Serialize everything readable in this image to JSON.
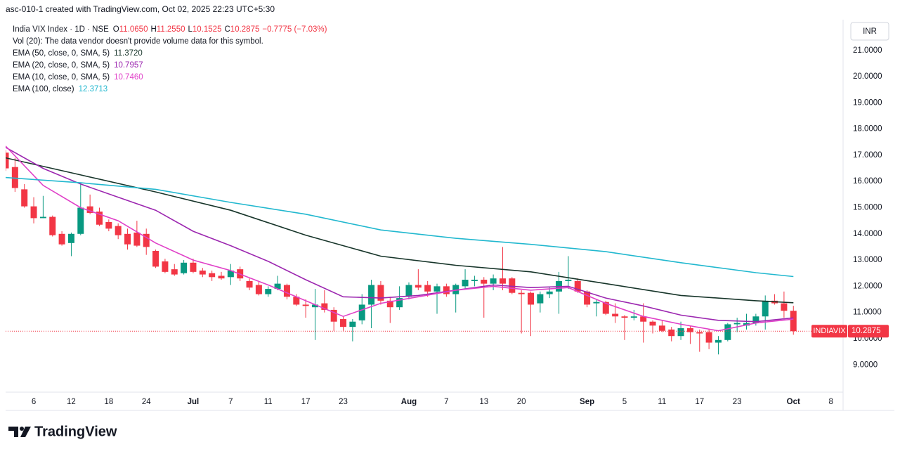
{
  "header": {
    "caption": "asc-010-1 created with TradingView.com, Oct 02, 2025 22:23 UTC+5:30",
    "brand": "TradingView"
  },
  "chart_data": {
    "type": "candlestick",
    "title": "India VIX Index · 1D · NSE",
    "quote": [
      {
        "key": "O",
        "value": "11.0650"
      },
      {
        "key": "H",
        "value": "11.2550"
      },
      {
        "key": "L",
        "value": "10.1525"
      },
      {
        "key": "C",
        "value": "10.2875"
      }
    ],
    "change": "−0.7775 (−7.03%)",
    "volume_note": "Vol (20): The data vendor doesn't provide volume data for this symbol.",
    "currency": "INR",
    "symbol": "INDIAVIX",
    "last_price": {
      "value": 10.2875,
      "label": "10.2875"
    },
    "up_color": "#089981",
    "down_color": "#f23645",
    "x": [
      0,
      1,
      2,
      3,
      4,
      5,
      6,
      7,
      8,
      9,
      10,
      11,
      12,
      13,
      14,
      15,
      16,
      17,
      18,
      19,
      20,
      21,
      22,
      23,
      24,
      25,
      26,
      27,
      28,
      29,
      30,
      31,
      32,
      33,
      34,
      35,
      36,
      37,
      38,
      39,
      40,
      41,
      42,
      43,
      44,
      45,
      46,
      47,
      48,
      49,
      50,
      51,
      52,
      53,
      54,
      55,
      56,
      57,
      58,
      59,
      60,
      61,
      62,
      63,
      64,
      65,
      66,
      67,
      68,
      69,
      70,
      71,
      72,
      73,
      74,
      75,
      76,
      77,
      78,
      79,
      80,
      81,
      82,
      83,
      84
    ],
    "open": [
      17.1,
      16.55,
      15.7,
      15.05,
      14.6,
      14.65,
      14.0,
      13.65,
      14.0,
      15.05,
      14.85,
      14.45,
      14.3,
      14.0,
      14.05,
      14.0,
      13.35,
      12.95,
      12.65,
      12.5,
      12.9,
      12.6,
      12.5,
      12.4,
      12.35,
      12.65,
      12.2,
      12.05,
      11.7,
      11.9,
      12.05,
      11.6,
      11.3,
      11.2,
      11.35,
      11.1,
      10.75,
      10.45,
      10.7,
      11.3,
      12.05,
      11.45,
      11.2,
      11.6,
      12.05,
      12.05,
      11.8,
      12.0,
      11.7,
      12.0,
      12.2,
      12.25,
      12.1,
      12.3,
      12.3,
      11.75,
      11.75,
      11.35,
      11.7,
      11.8,
      12.2,
      12.2,
      11.8,
      11.35,
      11.4,
      10.95,
      10.85,
      10.8,
      10.85,
      10.65,
      10.5,
      10.35,
      10.1,
      10.4,
      10.25,
      10.25,
      9.85,
      9.95,
      10.55,
      10.5,
      10.6,
      10.85,
      11.45,
      11.35,
      11.065
    ],
    "high": [
      17.2,
      16.9,
      15.9,
      15.4,
      15.45,
      14.7,
      14.1,
      14.05,
      15.95,
      15.5,
      15.0,
      14.55,
      14.4,
      14.2,
      14.5,
      14.2,
      13.4,
      13.05,
      12.85,
      13.0,
      13.05,
      12.7,
      12.6,
      12.55,
      12.85,
      12.75,
      12.3,
      12.2,
      12.0,
      12.4,
      12.1,
      11.7,
      11.5,
      11.9,
      11.85,
      11.2,
      10.85,
      10.75,
      11.7,
      12.25,
      12.2,
      11.6,
      12.0,
      12.15,
      12.65,
      12.2,
      12.1,
      12.1,
      12.1,
      12.65,
      12.4,
      12.35,
      12.45,
      13.5,
      12.35,
      11.85,
      11.8,
      11.8,
      11.95,
      12.55,
      13.15,
      12.3,
      11.85,
      11.5,
      11.45,
      11.35,
      10.9,
      11.1,
      11.35,
      10.7,
      10.7,
      10.45,
      10.65,
      10.5,
      10.35,
      10.35,
      10.1,
      10.6,
      10.8,
      10.95,
      10.95,
      11.65,
      11.7,
      11.8,
      11.255
    ],
    "low": [
      16.4,
      15.6,
      15.0,
      14.4,
      14.6,
      13.9,
      13.55,
      13.15,
      13.95,
      14.75,
      14.3,
      14.1,
      13.8,
      13.4,
      13.5,
      13.2,
      12.7,
      12.5,
      12.4,
      12.45,
      12.5,
      12.35,
      12.2,
      12.25,
      12.05,
      12.2,
      11.85,
      11.65,
      11.6,
      11.85,
      11.5,
      11.25,
      10.8,
      9.95,
      11.0,
      10.3,
      10.3,
      9.9,
      10.55,
      10.4,
      11.3,
      10.6,
      11.1,
      11.5,
      11.85,
      11.6,
      10.95,
      11.6,
      11.0,
      11.9,
      12.0,
      10.8,
      11.85,
      11.85,
      11.7,
      10.2,
      10.1,
      11.0,
      11.55,
      10.95,
      11.9,
      11.75,
      11.2,
      10.85,
      10.9,
      10.6,
      9.95,
      10.7,
      9.85,
      10.2,
      10.25,
      9.9,
      9.95,
      9.8,
      9.5,
      9.6,
      9.4,
      9.9,
      10.25,
      10.35,
      10.5,
      10.35,
      11.3,
      10.8,
      10.1525
    ],
    "close": [
      16.5,
      15.75,
      15.05,
      14.6,
      14.65,
      13.95,
      13.6,
      14.0,
      15.0,
      14.8,
      14.35,
      14.2,
      13.95,
      13.6,
      13.55,
      13.5,
      12.75,
      12.55,
      12.45,
      12.9,
      12.55,
      12.45,
      12.35,
      12.3,
      12.6,
      12.3,
      11.95,
      11.7,
      11.9,
      12.1,
      11.6,
      11.3,
      11.25,
      11.3,
      11.1,
      10.65,
      10.45,
      10.65,
      11.3,
      12.05,
      11.45,
      11.2,
      11.55,
      12.05,
      11.95,
      11.8,
      12.0,
      11.7,
      12.05,
      12.25,
      12.25,
      12.1,
      12.3,
      12.1,
      11.75,
      11.7,
      11.3,
      11.7,
      11.8,
      12.2,
      12.25,
      11.8,
      11.3,
      11.4,
      10.95,
      10.85,
      10.8,
      10.85,
      10.65,
      10.5,
      10.3,
      10.1,
      10.4,
      10.25,
      10.2,
      9.85,
      9.95,
      10.55,
      10.6,
      10.6,
      10.85,
      11.45,
      11.35,
      11.065,
      10.2875
    ],
    "series": [
      {
        "name": "EMA (50, close, 0, SMA, 5)",
        "value_label": "11.3720",
        "color": "#17352a",
        "x": [
          0,
          8,
          16,
          24,
          32,
          40,
          48,
          56,
          64,
          72,
          80,
          84
        ],
        "values": [
          16.9,
          16.25,
          15.6,
          14.9,
          13.95,
          13.15,
          12.8,
          12.55,
          12.1,
          11.65,
          11.45,
          11.372
        ]
      },
      {
        "name": "EMA (20, close, 0, SMA, 5)",
        "value_label": "10.7957",
        "color": "#9c27b0",
        "x": [
          0,
          4,
          8,
          12,
          16,
          20,
          24,
          28,
          32,
          36,
          40,
          44,
          48,
          52,
          56,
          60,
          64,
          68,
          72,
          76,
          80,
          84
        ],
        "values": [
          17.3,
          16.5,
          15.9,
          15.4,
          14.9,
          14.1,
          13.55,
          12.95,
          12.25,
          11.6,
          11.55,
          11.65,
          11.85,
          12.05,
          11.95,
          12.0,
          11.55,
          11.25,
          10.9,
          10.7,
          10.65,
          10.7957
        ]
      },
      {
        "name": "EMA (10, close, 0, SMA, 5)",
        "value_label": "10.7460",
        "color": "#e040c8",
        "x": [
          0,
          4,
          8,
          12,
          16,
          20,
          24,
          28,
          32,
          36,
          40,
          44,
          48,
          52,
          56,
          60,
          64,
          68,
          72,
          76,
          80,
          84
        ],
        "values": [
          17.35,
          15.85,
          15.0,
          14.5,
          13.65,
          13.0,
          12.6,
          12.05,
          11.45,
          10.85,
          11.35,
          11.6,
          11.85,
          12.0,
          11.85,
          11.95,
          11.35,
          10.85,
          10.55,
          10.3,
          10.6,
          10.746
        ]
      },
      {
        "name": "EMA (100, close)",
        "value_label": "12.3713",
        "color": "#22b8cf",
        "x": [
          0,
          8,
          16,
          24,
          32,
          40,
          48,
          56,
          64,
          72,
          80,
          84
        ],
        "values": [
          16.15,
          15.95,
          15.7,
          15.2,
          14.75,
          14.15,
          13.83,
          13.6,
          13.32,
          12.9,
          12.52,
          12.3713
        ]
      }
    ],
    "xlim": [
      0,
      89.3
    ],
    "ylim": [
      7.96,
      22.12
    ],
    "xticks": [
      {
        "value": 3,
        "label": "6"
      },
      {
        "value": 7,
        "label": "12"
      },
      {
        "value": 11,
        "label": "18"
      },
      {
        "value": 15,
        "label": "24"
      },
      {
        "value": 20,
        "label": "Jul"
      },
      {
        "value": 24,
        "label": "7"
      },
      {
        "value": 28,
        "label": "11"
      },
      {
        "value": 32,
        "label": "17"
      },
      {
        "value": 36,
        "label": "23"
      },
      {
        "value": 43,
        "label": "Aug"
      },
      {
        "value": 47,
        "label": "7"
      },
      {
        "value": 51,
        "label": "13"
      },
      {
        "value": 55,
        "label": "20"
      },
      {
        "value": 62,
        "label": "Sep"
      },
      {
        "value": 66,
        "label": "5"
      },
      {
        "value": 70,
        "label": "11"
      },
      {
        "value": 74,
        "label": "17"
      },
      {
        "value": 78,
        "label": "23"
      },
      {
        "value": 84,
        "label": "Oct"
      },
      {
        "value": 88,
        "label": "8"
      }
    ],
    "yticks": [
      {
        "value": 9,
        "label": "9.0000"
      },
      {
        "value": 10,
        "label": "10.0000"
      },
      {
        "value": 11,
        "label": "11.0000"
      },
      {
        "value": 12,
        "label": "12.0000"
      },
      {
        "value": 13,
        "label": "13.0000"
      },
      {
        "value": 14,
        "label": "14.0000"
      },
      {
        "value": 15,
        "label": "15.0000"
      },
      {
        "value": 16,
        "label": "16.0000"
      },
      {
        "value": 17,
        "label": "17.0000"
      },
      {
        "value": 18,
        "label": "18.0000"
      },
      {
        "value": 19,
        "label": "19.0000"
      },
      {
        "value": 20,
        "label": "20.0000"
      },
      {
        "value": 21,
        "label": "21.0000"
      }
    ]
  }
}
